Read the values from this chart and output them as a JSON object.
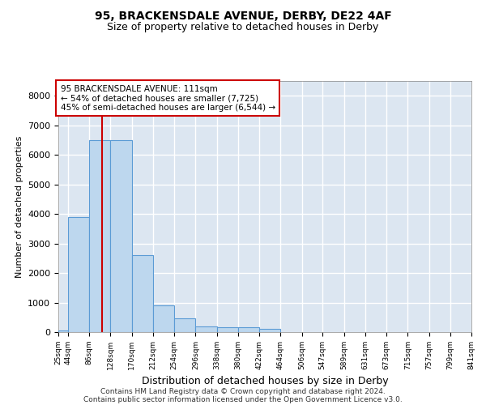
{
  "title": "95, BRACKENSDALE AVENUE, DERBY, DE22 4AF",
  "subtitle": "Size of property relative to detached houses in Derby",
  "xlabel": "Distribution of detached houses by size in Derby",
  "ylabel": "Number of detached properties",
  "bin_edges": [
    25,
    44,
    86,
    128,
    170,
    212,
    254,
    296,
    338,
    380,
    422,
    464,
    506,
    547,
    589,
    631,
    673,
    715,
    757,
    799,
    841
  ],
  "bar_heights": [
    60,
    3900,
    6500,
    6500,
    2600,
    900,
    470,
    200,
    155,
    155,
    100,
    0,
    0,
    0,
    0,
    0,
    0,
    0,
    0,
    0
  ],
  "bar_color": "#bdd7ee",
  "bar_edge_color": "#5b9bd5",
  "property_size": 111,
  "property_line_color": "#cc0000",
  "annotation_line1": "95 BRACKENSDALE AVENUE: 111sqm",
  "annotation_line2": "← 54% of detached houses are smaller (7,725)",
  "annotation_line3": "45% of semi-detached houses are larger (6,544) →",
  "annotation_box_color": "#cc0000",
  "ylim": [
    0,
    8500
  ],
  "yticks": [
    0,
    1000,
    2000,
    3000,
    4000,
    5000,
    6000,
    7000,
    8000
  ],
  "background_color": "#dce6f1",
  "grid_color": "#ffffff",
  "footer_line1": "Contains HM Land Registry data © Crown copyright and database right 2024.",
  "footer_line2": "Contains public sector information licensed under the Open Government Licence v3.0."
}
